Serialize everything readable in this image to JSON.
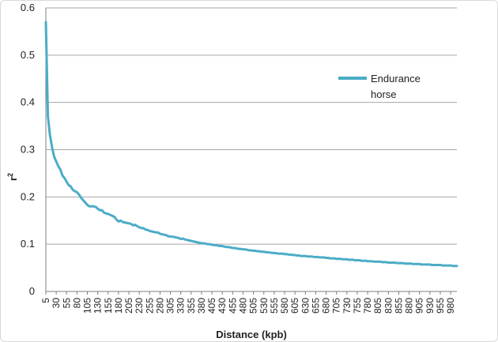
{
  "chart_data": {
    "type": "line",
    "xlabel": "Distance (kpb)",
    "ylabel": "r",
    "ylabel_sup": "2",
    "ylim": [
      0,
      0.6
    ],
    "yticks": [
      "0",
      "0.1",
      "0.2",
      "0.3",
      "0.4",
      "0.5",
      "0.6"
    ],
    "xlim": [
      5,
      995
    ],
    "xticks": [
      5,
      30,
      55,
      80,
      105,
      130,
      155,
      180,
      205,
      230,
      255,
      280,
      305,
      330,
      355,
      380,
      405,
      430,
      455,
      480,
      505,
      530,
      555,
      580,
      605,
      630,
      655,
      680,
      705,
      730,
      755,
      780,
      805,
      830,
      855,
      880,
      905,
      930,
      955,
      980
    ],
    "grid": "horizontal",
    "legend_position": "right",
    "series": [
      {
        "name": "Endurance horse",
        "color": "#4bacc6",
        "points": [
          [
            5,
            0.57
          ],
          [
            10,
            0.37
          ],
          [
            15,
            0.33
          ],
          [
            20,
            0.305
          ],
          [
            25,
            0.285
          ],
          [
            30,
            0.275
          ],
          [
            35,
            0.265
          ],
          [
            40,
            0.258
          ],
          [
            45,
            0.245
          ],
          [
            50,
            0.24
          ],
          [
            55,
            0.232
          ],
          [
            60,
            0.225
          ],
          [
            65,
            0.222
          ],
          [
            70,
            0.215
          ],
          [
            75,
            0.212
          ],
          [
            80,
            0.21
          ],
          [
            85,
            0.205
          ],
          [
            90,
            0.198
          ],
          [
            95,
            0.193
          ],
          [
            100,
            0.188
          ],
          [
            105,
            0.183
          ],
          [
            110,
            0.18
          ],
          [
            115,
            0.18
          ],
          [
            120,
            0.18
          ],
          [
            125,
            0.179
          ],
          [
            130,
            0.175
          ],
          [
            135,
            0.172
          ],
          [
            140,
            0.172
          ],
          [
            145,
            0.167
          ],
          [
            150,
            0.165
          ],
          [
            155,
            0.164
          ],
          [
            160,
            0.162
          ],
          [
            165,
            0.16
          ],
          [
            170,
            0.158
          ],
          [
            175,
            0.152
          ],
          [
            180,
            0.148
          ],
          [
            185,
            0.15
          ],
          [
            190,
            0.147
          ],
          [
            195,
            0.146
          ],
          [
            200,
            0.145
          ],
          [
            205,
            0.144
          ],
          [
            210,
            0.143
          ],
          [
            215,
            0.14
          ],
          [
            220,
            0.141
          ],
          [
            225,
            0.138
          ],
          [
            230,
            0.136
          ],
          [
            235,
            0.134
          ],
          [
            240,
            0.134
          ],
          [
            245,
            0.131
          ],
          [
            250,
            0.13
          ],
          [
            255,
            0.128
          ],
          [
            260,
            0.127
          ],
          [
            265,
            0.126
          ],
          [
            270,
            0.125
          ],
          [
            275,
            0.125
          ],
          [
            280,
            0.122
          ],
          [
            285,
            0.121
          ],
          [
            290,
            0.12
          ],
          [
            295,
            0.119
          ],
          [
            300,
            0.117
          ],
          [
            305,
            0.116
          ],
          [
            310,
            0.116
          ],
          [
            315,
            0.115
          ],
          [
            320,
            0.114
          ],
          [
            325,
            0.113
          ],
          [
            330,
            0.111
          ],
          [
            335,
            0.112
          ],
          [
            340,
            0.11
          ],
          [
            345,
            0.109
          ],
          [
            350,
            0.108
          ],
          [
            355,
            0.107
          ],
          [
            360,
            0.106
          ],
          [
            365,
            0.105
          ],
          [
            370,
            0.104
          ],
          [
            375,
            0.103
          ],
          [
            380,
            0.102
          ],
          [
            385,
            0.102
          ],
          [
            390,
            0.101
          ],
          [
            395,
            0.1
          ],
          [
            400,
            0.1
          ],
          [
            405,
            0.099
          ],
          [
            410,
            0.098
          ],
          [
            415,
            0.098
          ],
          [
            420,
            0.097
          ],
          [
            425,
            0.096
          ],
          [
            430,
            0.096
          ],
          [
            435,
            0.095
          ],
          [
            440,
            0.094
          ],
          [
            445,
            0.094
          ],
          [
            450,
            0.093
          ],
          [
            455,
            0.092
          ],
          [
            460,
            0.092
          ],
          [
            465,
            0.091
          ],
          [
            470,
            0.09
          ],
          [
            475,
            0.09
          ],
          [
            480,
            0.089
          ],
          [
            485,
            0.089
          ],
          [
            490,
            0.088
          ],
          [
            495,
            0.087
          ],
          [
            500,
            0.087
          ],
          [
            505,
            0.086
          ],
          [
            510,
            0.086
          ],
          [
            515,
            0.085
          ],
          [
            520,
            0.085
          ],
          [
            525,
            0.084
          ],
          [
            530,
            0.084
          ],
          [
            535,
            0.083
          ],
          [
            540,
            0.083
          ],
          [
            545,
            0.082
          ],
          [
            550,
            0.082
          ],
          [
            555,
            0.081
          ],
          [
            560,
            0.081
          ],
          [
            565,
            0.08
          ],
          [
            570,
            0.08
          ],
          [
            575,
            0.08
          ],
          [
            580,
            0.079
          ],
          [
            585,
            0.079
          ],
          [
            590,
            0.078
          ],
          [
            595,
            0.078
          ],
          [
            600,
            0.077
          ],
          [
            605,
            0.077
          ],
          [
            610,
            0.076
          ],
          [
            615,
            0.076
          ],
          [
            620,
            0.075
          ],
          [
            625,
            0.075
          ],
          [
            630,
            0.075
          ],
          [
            635,
            0.074
          ],
          [
            640,
            0.074
          ],
          [
            645,
            0.074
          ],
          [
            650,
            0.073
          ],
          [
            655,
            0.073
          ],
          [
            660,
            0.073
          ],
          [
            665,
            0.072
          ],
          [
            670,
            0.072
          ],
          [
            675,
            0.072
          ],
          [
            680,
            0.071
          ],
          [
            685,
            0.071
          ],
          [
            690,
            0.07
          ],
          [
            695,
            0.07
          ],
          [
            700,
            0.07
          ],
          [
            705,
            0.069
          ],
          [
            710,
            0.069
          ],
          [
            715,
            0.069
          ],
          [
            720,
            0.068
          ],
          [
            725,
            0.068
          ],
          [
            730,
            0.068
          ],
          [
            735,
            0.067
          ],
          [
            740,
            0.067
          ],
          [
            745,
            0.067
          ],
          [
            750,
            0.066
          ],
          [
            755,
            0.066
          ],
          [
            760,
            0.066
          ],
          [
            765,
            0.065
          ],
          [
            770,
            0.065
          ],
          [
            775,
            0.065
          ],
          [
            780,
            0.064
          ],
          [
            785,
            0.064
          ],
          [
            790,
            0.064
          ],
          [
            795,
            0.063
          ],
          [
            800,
            0.063
          ],
          [
            805,
            0.063
          ],
          [
            810,
            0.063
          ],
          [
            815,
            0.062
          ],
          [
            820,
            0.062
          ],
          [
            825,
            0.062
          ],
          [
            830,
            0.061
          ],
          [
            835,
            0.061
          ],
          [
            840,
            0.061
          ],
          [
            845,
            0.061
          ],
          [
            850,
            0.06
          ],
          [
            855,
            0.06
          ],
          [
            860,
            0.06
          ],
          [
            865,
            0.06
          ],
          [
            870,
            0.059
          ],
          [
            875,
            0.059
          ],
          [
            880,
            0.059
          ],
          [
            885,
            0.059
          ],
          [
            890,
            0.058
          ],
          [
            895,
            0.058
          ],
          [
            900,
            0.058
          ],
          [
            905,
            0.058
          ],
          [
            910,
            0.057
          ],
          [
            915,
            0.057
          ],
          [
            920,
            0.057
          ],
          [
            925,
            0.057
          ],
          [
            930,
            0.057
          ],
          [
            935,
            0.056
          ],
          [
            940,
            0.056
          ],
          [
            945,
            0.056
          ],
          [
            950,
            0.056
          ],
          [
            955,
            0.056
          ],
          [
            960,
            0.055
          ],
          [
            965,
            0.055
          ],
          [
            970,
            0.055
          ],
          [
            975,
            0.055
          ],
          [
            980,
            0.055
          ],
          [
            985,
            0.054
          ],
          [
            990,
            0.054
          ],
          [
            995,
            0.054
          ]
        ]
      }
    ]
  }
}
